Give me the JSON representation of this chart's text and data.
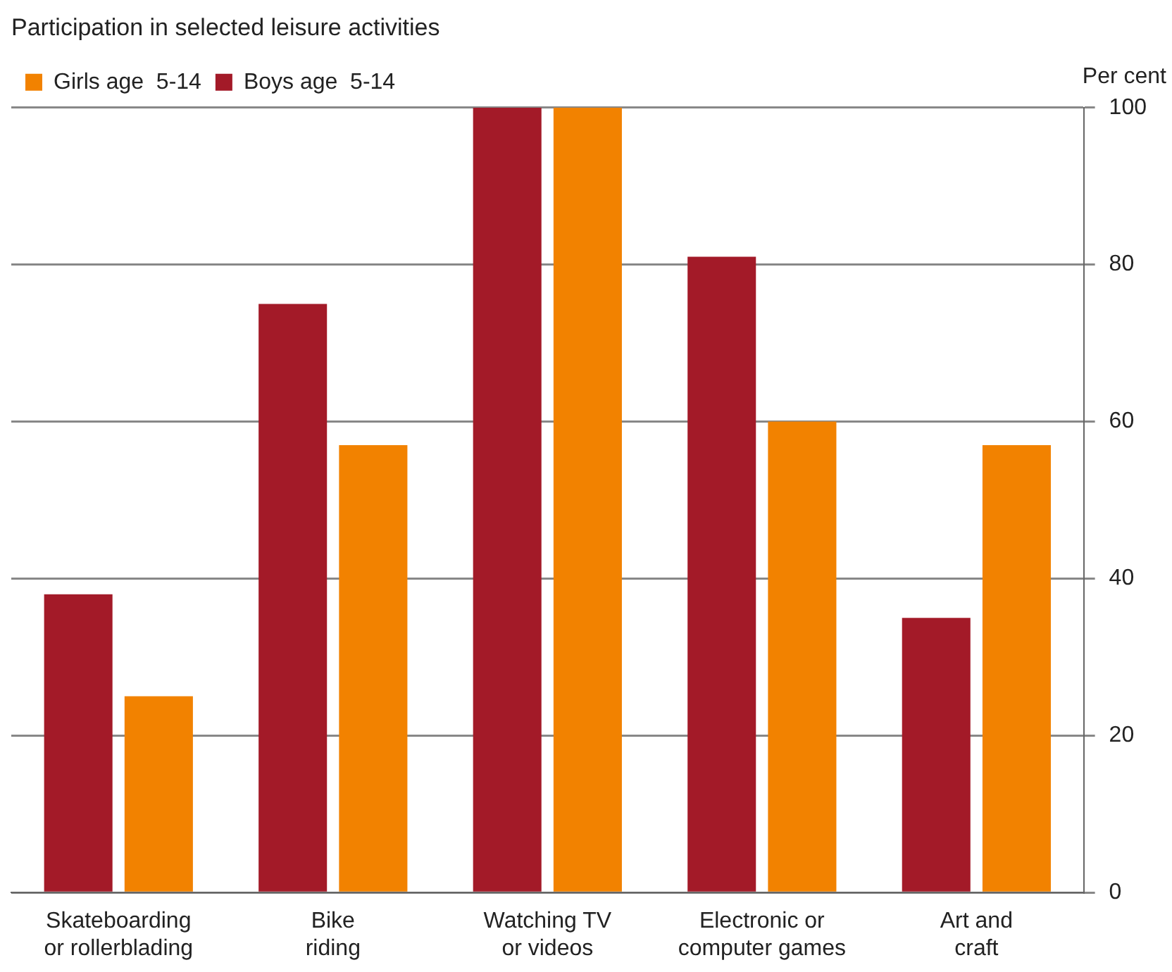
{
  "chart_data": {
    "type": "bar",
    "title": "Participation in selected leisure activities",
    "ylabel": "Per cent",
    "categories": [
      "Skateboarding\nor rollerblading",
      "Bike\nriding",
      "Watching TV\nor videos",
      "Electronic or\ncomputer games",
      "Art and\ncraft"
    ],
    "series": [
      {
        "name": "Boys age  5-14",
        "color": "#a31a28",
        "values": [
          38,
          75,
          100,
          81,
          35
        ]
      },
      {
        "name": "Girls age  5-14",
        "color": "#f28200",
        "values": [
          25,
          57,
          100,
          60,
          57
        ]
      }
    ],
    "ylim": [
      0,
      100
    ],
    "yticks": [
      0,
      20,
      40,
      60,
      80,
      100
    ],
    "grid": "y",
    "legend": "top left"
  }
}
